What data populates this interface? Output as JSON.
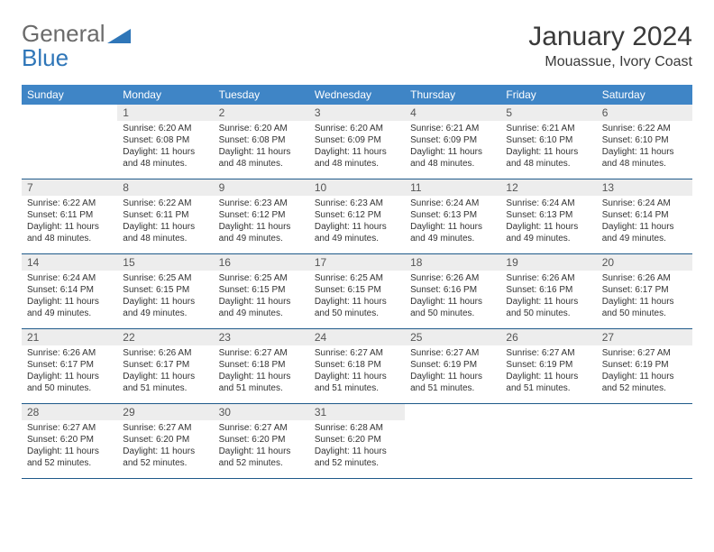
{
  "logo": {
    "word1": "General",
    "word2": "Blue"
  },
  "title": "January 2024",
  "location": "Mouassue, Ivory Coast",
  "colors": {
    "header_bg": "#3f85c6",
    "header_text": "#ffffff",
    "row_border": "#1f5a8a",
    "daynum_bg": "#ededed",
    "logo_gray": "#6b6b6b",
    "logo_blue": "#2f76b8"
  },
  "weekdays": [
    "Sunday",
    "Monday",
    "Tuesday",
    "Wednesday",
    "Thursday",
    "Friday",
    "Saturday"
  ],
  "weeks": [
    [
      {
        "n": "",
        "sr": "",
        "ss": "",
        "dl": ""
      },
      {
        "n": "1",
        "sr": "6:20 AM",
        "ss": "6:08 PM",
        "dl": "11 hours and 48 minutes."
      },
      {
        "n": "2",
        "sr": "6:20 AM",
        "ss": "6:08 PM",
        "dl": "11 hours and 48 minutes."
      },
      {
        "n": "3",
        "sr": "6:20 AM",
        "ss": "6:09 PM",
        "dl": "11 hours and 48 minutes."
      },
      {
        "n": "4",
        "sr": "6:21 AM",
        "ss": "6:09 PM",
        "dl": "11 hours and 48 minutes."
      },
      {
        "n": "5",
        "sr": "6:21 AM",
        "ss": "6:10 PM",
        "dl": "11 hours and 48 minutes."
      },
      {
        "n": "6",
        "sr": "6:22 AM",
        "ss": "6:10 PM",
        "dl": "11 hours and 48 minutes."
      }
    ],
    [
      {
        "n": "7",
        "sr": "6:22 AM",
        "ss": "6:11 PM",
        "dl": "11 hours and 48 minutes."
      },
      {
        "n": "8",
        "sr": "6:22 AM",
        "ss": "6:11 PM",
        "dl": "11 hours and 48 minutes."
      },
      {
        "n": "9",
        "sr": "6:23 AM",
        "ss": "6:12 PM",
        "dl": "11 hours and 49 minutes."
      },
      {
        "n": "10",
        "sr": "6:23 AM",
        "ss": "6:12 PM",
        "dl": "11 hours and 49 minutes."
      },
      {
        "n": "11",
        "sr": "6:24 AM",
        "ss": "6:13 PM",
        "dl": "11 hours and 49 minutes."
      },
      {
        "n": "12",
        "sr": "6:24 AM",
        "ss": "6:13 PM",
        "dl": "11 hours and 49 minutes."
      },
      {
        "n": "13",
        "sr": "6:24 AM",
        "ss": "6:14 PM",
        "dl": "11 hours and 49 minutes."
      }
    ],
    [
      {
        "n": "14",
        "sr": "6:24 AM",
        "ss": "6:14 PM",
        "dl": "11 hours and 49 minutes."
      },
      {
        "n": "15",
        "sr": "6:25 AM",
        "ss": "6:15 PM",
        "dl": "11 hours and 49 minutes."
      },
      {
        "n": "16",
        "sr": "6:25 AM",
        "ss": "6:15 PM",
        "dl": "11 hours and 49 minutes."
      },
      {
        "n": "17",
        "sr": "6:25 AM",
        "ss": "6:15 PM",
        "dl": "11 hours and 50 minutes."
      },
      {
        "n": "18",
        "sr": "6:26 AM",
        "ss": "6:16 PM",
        "dl": "11 hours and 50 minutes."
      },
      {
        "n": "19",
        "sr": "6:26 AM",
        "ss": "6:16 PM",
        "dl": "11 hours and 50 minutes."
      },
      {
        "n": "20",
        "sr": "6:26 AM",
        "ss": "6:17 PM",
        "dl": "11 hours and 50 minutes."
      }
    ],
    [
      {
        "n": "21",
        "sr": "6:26 AM",
        "ss": "6:17 PM",
        "dl": "11 hours and 50 minutes."
      },
      {
        "n": "22",
        "sr": "6:26 AM",
        "ss": "6:17 PM",
        "dl": "11 hours and 51 minutes."
      },
      {
        "n": "23",
        "sr": "6:27 AM",
        "ss": "6:18 PM",
        "dl": "11 hours and 51 minutes."
      },
      {
        "n": "24",
        "sr": "6:27 AM",
        "ss": "6:18 PM",
        "dl": "11 hours and 51 minutes."
      },
      {
        "n": "25",
        "sr": "6:27 AM",
        "ss": "6:19 PM",
        "dl": "11 hours and 51 minutes."
      },
      {
        "n": "26",
        "sr": "6:27 AM",
        "ss": "6:19 PM",
        "dl": "11 hours and 51 minutes."
      },
      {
        "n": "27",
        "sr": "6:27 AM",
        "ss": "6:19 PM",
        "dl": "11 hours and 52 minutes."
      }
    ],
    [
      {
        "n": "28",
        "sr": "6:27 AM",
        "ss": "6:20 PM",
        "dl": "11 hours and 52 minutes."
      },
      {
        "n": "29",
        "sr": "6:27 AM",
        "ss": "6:20 PM",
        "dl": "11 hours and 52 minutes."
      },
      {
        "n": "30",
        "sr": "6:27 AM",
        "ss": "6:20 PM",
        "dl": "11 hours and 52 minutes."
      },
      {
        "n": "31",
        "sr": "6:28 AM",
        "ss": "6:20 PM",
        "dl": "11 hours and 52 minutes."
      },
      {
        "n": "",
        "sr": "",
        "ss": "",
        "dl": ""
      },
      {
        "n": "",
        "sr": "",
        "ss": "",
        "dl": ""
      },
      {
        "n": "",
        "sr": "",
        "ss": "",
        "dl": ""
      }
    ]
  ],
  "labels": {
    "sunrise": "Sunrise: ",
    "sunset": "Sunset: ",
    "daylight": "Daylight: "
  }
}
